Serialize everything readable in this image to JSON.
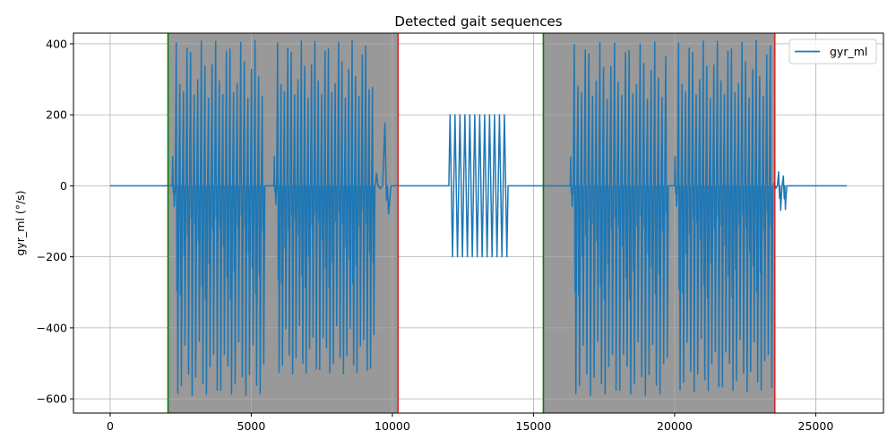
{
  "chart_data": {
    "type": "line",
    "title": "Detected gait sequences",
    "xlabel": "",
    "ylabel": "gyr_ml (°/s)",
    "xlim": [
      -1300,
      27400
    ],
    "ylim": [
      -640,
      430
    ],
    "x_ticks": [
      0,
      5000,
      10000,
      15000,
      20000,
      25000
    ],
    "y_ticks": [
      -600,
      -400,
      -200,
      0,
      200,
      400
    ],
    "y_tick_labels": [
      "−600",
      "−400",
      "−200",
      "0",
      "200",
      "400"
    ],
    "grid": true,
    "legend": {
      "position": "top-right",
      "entries": [
        "gyr_ml"
      ]
    },
    "colors": {
      "line": "#1f77b4",
      "shade": "#999999",
      "start": "#008000",
      "end": "#d62728",
      "grid": "#b0b0b0"
    },
    "gait_sequences": [
      {
        "start": 2050,
        "end": 10200
      },
      {
        "start": 15350,
        "end": 23550
      }
    ],
    "series": [
      {
        "name": "gyr_ml",
        "segments": [
          {
            "kind": "flat",
            "x0": 0,
            "x1": 2200,
            "value": 0
          },
          {
            "kind": "burst",
            "x0": 2200,
            "x1": 5500,
            "n": 26,
            "max": 410,
            "min": -590
          },
          {
            "kind": "flat",
            "x0": 5500,
            "x1": 5800,
            "value": 0
          },
          {
            "kind": "burst",
            "x0": 5800,
            "x1": 9400,
            "n": 30,
            "max": 410,
            "min": -530
          },
          {
            "kind": "burst",
            "x0": 9400,
            "x1": 10000,
            "n": 2,
            "max": 180,
            "min": -80
          },
          {
            "kind": "flat",
            "x0": 10000,
            "x1": 12000,
            "value": 0
          },
          {
            "kind": "sine",
            "x0": 12000,
            "x1": 14100,
            "n": 12,
            "max": 200,
            "min": -200
          },
          {
            "kind": "flat",
            "x0": 14100,
            "x1": 16300,
            "value": 0
          },
          {
            "kind": "burst",
            "x0": 16300,
            "x1": 19800,
            "n": 27,
            "max": 405,
            "min": -590
          },
          {
            "kind": "flat",
            "x0": 19800,
            "x1": 20000,
            "value": 0
          },
          {
            "kind": "burst",
            "x0": 20000,
            "x1": 23500,
            "n": 28,
            "max": 410,
            "min": -580
          },
          {
            "kind": "burst",
            "x0": 23500,
            "x1": 24000,
            "n": 3,
            "max": 40,
            "min": -70
          },
          {
            "kind": "flat",
            "x0": 24000,
            "x1": 26100,
            "value": 0
          }
        ]
      }
    ]
  }
}
